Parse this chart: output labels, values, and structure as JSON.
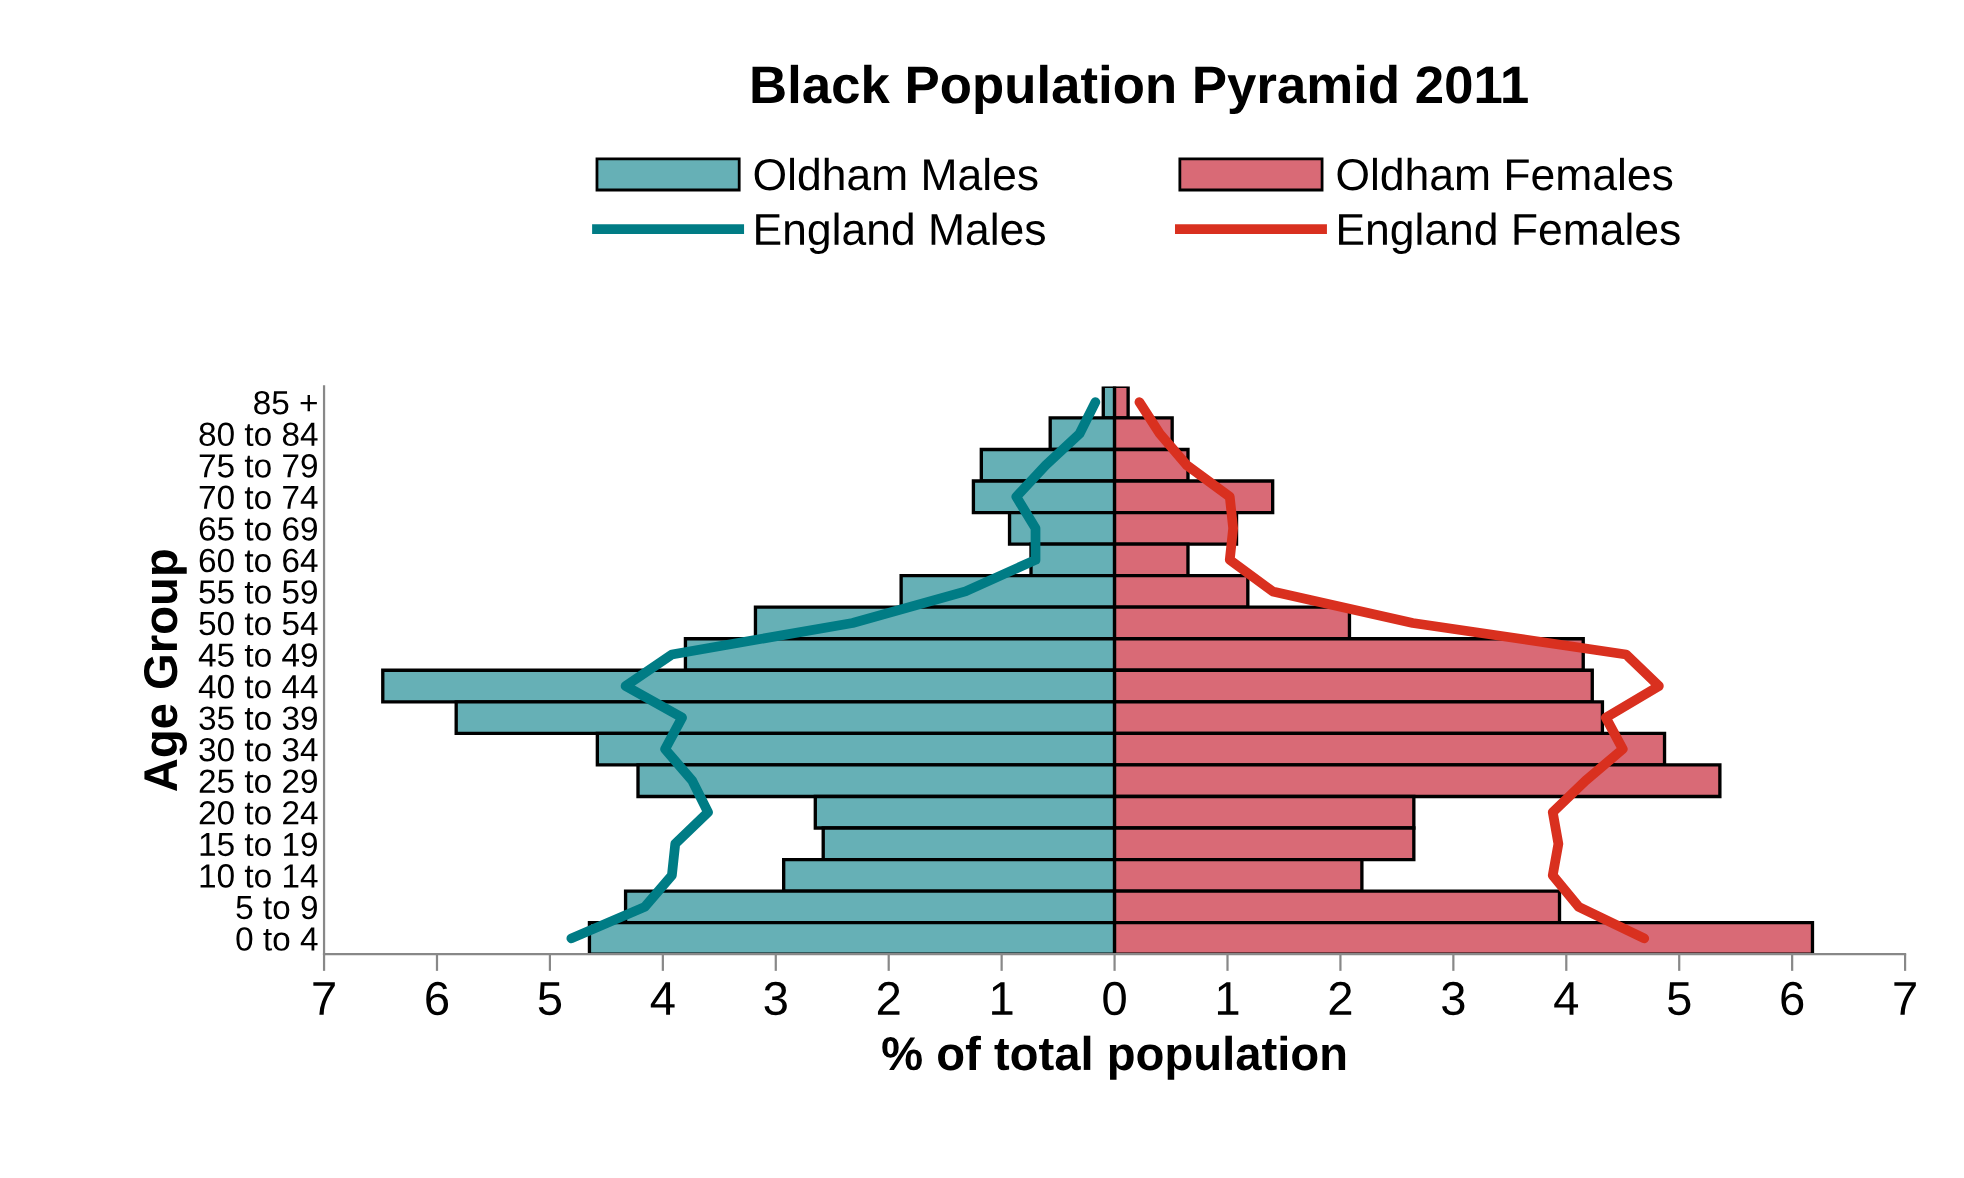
{
  "chart_data": {
    "type": "bar",
    "orientation": "horizontal",
    "title": "Black Population Pyramid 2011",
    "xlabel": "% of total population",
    "ylabel": "Age Group",
    "categories": [
      "85 +",
      "80 to 84",
      "75 to 79",
      "70 to 74",
      "65 to 69",
      "60 to 64",
      "55 to 59",
      "50 to 54",
      "45 to 49",
      "40 to 44",
      "35 to 39",
      "30 to 34",
      "25 to 29",
      "20 to 24",
      "15 to 19",
      "10 to 14",
      "5 to 9",
      "0 to 4"
    ],
    "series": [
      {
        "name": "Oldham Males",
        "color": "#66b0b6",
        "values": [
          -0.1,
          -0.57,
          -1.18,
          -1.25,
          -0.93,
          -0.74,
          -1.89,
          -3.18,
          -3.8,
          -6.48,
          -5.83,
          -4.58,
          -4.22,
          -2.65,
          -2.58,
          -2.93,
          -4.33,
          -4.65
        ]
      },
      {
        "name": "Oldham Females",
        "color": "#d96a76",
        "values": [
          0.12,
          0.51,
          0.65,
          1.4,
          1.08,
          0.65,
          1.18,
          2.08,
          4.15,
          4.23,
          4.32,
          4.87,
          5.36,
          2.65,
          2.65,
          2.19,
          3.94,
          6.18
        ]
      },
      {
        "name": "England Males",
        "type": "line",
        "color": "#007c85",
        "values": [
          -0.17,
          -0.31,
          -0.61,
          -0.87,
          -0.7,
          -0.7,
          -1.32,
          -2.32,
          -3.92,
          -4.33,
          -3.83,
          -3.98,
          -3.74,
          -3.6,
          -3.89,
          -3.92,
          -4.16,
          -4.81
        ]
      },
      {
        "name": "England Females",
        "type": "line",
        "color": "#d9301f",
        "values": [
          0.22,
          0.4,
          0.64,
          1.02,
          1.05,
          1.02,
          1.4,
          2.64,
          4.53,
          4.82,
          4.35,
          4.5,
          4.17,
          3.88,
          3.93,
          3.88,
          4.11,
          4.69
        ]
      }
    ],
    "xlim": [
      -7,
      7
    ],
    "xticks": [
      {
        "value": -7,
        "label": "7"
      },
      {
        "value": -6,
        "label": "6"
      },
      {
        "value": -5,
        "label": "5"
      },
      {
        "value": -4,
        "label": "4"
      },
      {
        "value": -3,
        "label": "3"
      },
      {
        "value": -2,
        "label": "2"
      },
      {
        "value": -1,
        "label": "1"
      },
      0,
      1,
      2,
      3,
      4,
      5,
      6,
      7
    ],
    "stacked": true,
    "grid": false,
    "legend": "top",
    "line_style": "solid",
    "marker": "none"
  }
}
